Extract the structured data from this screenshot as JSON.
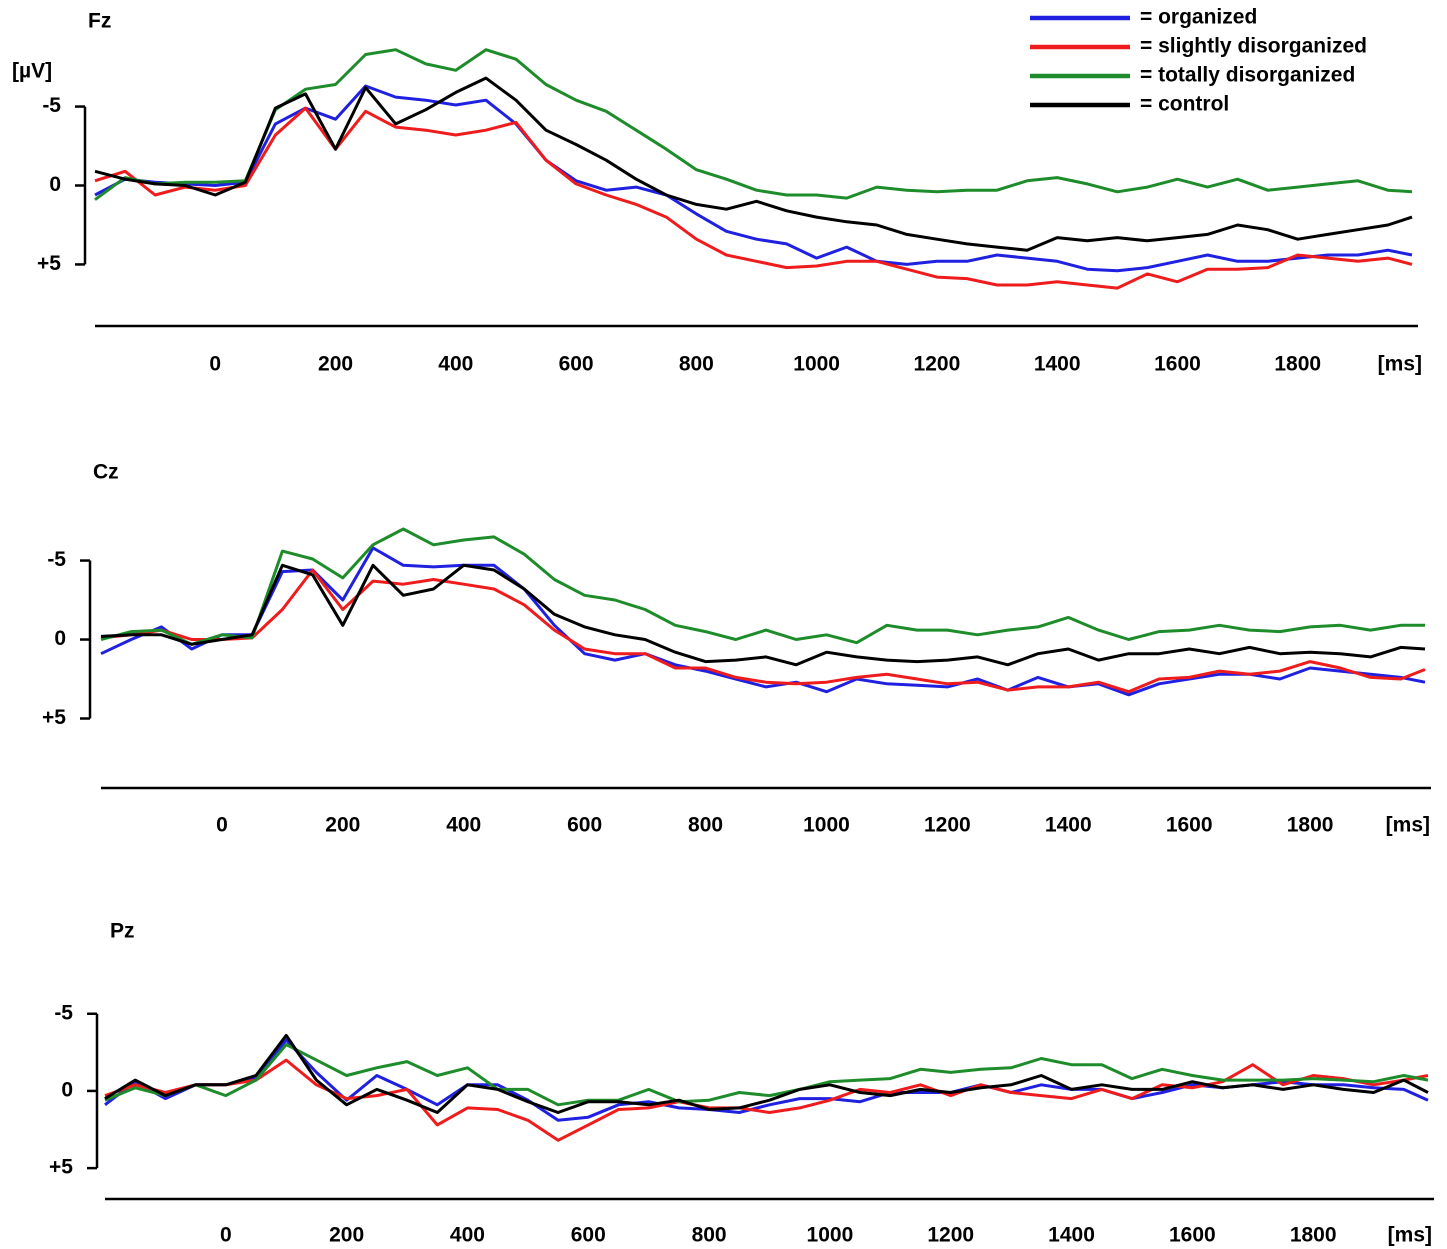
{
  "chart_data": [
    {
      "type": "line",
      "title": "Fz",
      "ylabel": "[µV]",
      "xlabel": "[ms]",
      "legend": "upper right",
      "x": [
        -200,
        -150,
        -100,
        -50,
        0,
        50,
        100,
        150,
        200,
        250,
        300,
        350,
        400,
        450,
        500,
        550,
        600,
        650,
        700,
        750,
        800,
        850,
        900,
        950,
        1000,
        1050,
        1100,
        1150,
        1200,
        1250,
        1300,
        1350,
        1400,
        1450,
        1500,
        1550,
        1600,
        1650,
        1700,
        1750,
        1800,
        1850,
        1900,
        1950,
        1990
      ],
      "xlim": [
        -200,
        2000
      ],
      "xticks": [
        0,
        200,
        400,
        600,
        800,
        1000,
        1200,
        1400,
        1600,
        1800
      ],
      "ylim": [
        -10.8,
        8.9
      ],
      "y_reversed": true,
      "yticks": [
        -5,
        0,
        {
          "value": 5,
          "label": "+5"
        }
      ],
      "series": [
        {
          "name": "= organized",
          "color": "#2020e0",
          "values": [
            0.6,
            -0.4,
            -0.2,
            -0.1,
            0,
            -0.2,
            -3.9,
            -4.9,
            -4.2,
            -6.3,
            -5.6,
            -5.4,
            -5.1,
            -5.4,
            -3.9,
            -1.6,
            -0.3,
            0.3,
            0.1,
            0.6,
            1.8,
            2.9,
            3.4,
            3.7,
            4.6,
            3.9,
            4.8,
            5.0,
            4.8,
            4.8,
            4.4,
            4.6,
            4.8,
            5.3,
            5.4,
            5.2,
            4.8,
            4.4,
            4.8,
            4.8,
            4.6,
            4.4,
            4.4,
            4.1,
            4.4
          ]
        },
        {
          "name": "= slightly disorganized",
          "color": "#ee1c1c",
          "values": [
            -0.3,
            -0.9,
            0.6,
            0.1,
            0.3,
            0,
            -3.2,
            -4.9,
            -2.3,
            -4.7,
            -3.7,
            -3.5,
            -3.2,
            -3.5,
            -4.0,
            -1.6,
            -0.1,
            0.6,
            1.2,
            2.0,
            3.4,
            4.4,
            4.8,
            5.2,
            5.1,
            4.8,
            4.8,
            5.3,
            5.8,
            5.9,
            6.3,
            6.3,
            6.1,
            6.3,
            6.5,
            5.6,
            6.1,
            5.3,
            5.3,
            5.2,
            4.4,
            4.6,
            4.8,
            4.6,
            5.0
          ]
        },
        {
          "name": "= totally disorganized",
          "color": "#1e8c2a",
          "values": [
            0.9,
            -0.5,
            -0.1,
            -0.2,
            -0.2,
            -0.3,
            -4.8,
            -6.1,
            -6.4,
            -8.3,
            -8.6,
            -7.7,
            -7.3,
            -8.6,
            -8.0,
            -6.4,
            -5.4,
            -4.7,
            -3.5,
            -2.3,
            -1.0,
            -0.4,
            0.3,
            0.6,
            0.6,
            0.8,
            0.1,
            0.3,
            0.4,
            0.3,
            0.3,
            -0.3,
            -0.5,
            -0.1,
            0.4,
            0.1,
            -0.4,
            0.1,
            -0.4,
            0.3,
            0.1,
            -0.1,
            -0.3,
            0.3,
            0.4
          ]
        },
        {
          "name": "= control",
          "color": "#000000",
          "values": [
            -0.9,
            -0.4,
            -0.1,
            0,
            0.6,
            -0.2,
            -4.9,
            -5.8,
            -2.3,
            -6.2,
            -3.9,
            -4.8,
            -5.9,
            -6.8,
            -5.4,
            -3.5,
            -2.6,
            -1.6,
            -0.4,
            0.6,
            1.2,
            1.5,
            1.0,
            1.6,
            2.0,
            2.3,
            2.5,
            3.1,
            3.4,
            3.7,
            3.9,
            4.1,
            3.3,
            3.5,
            3.3,
            3.5,
            3.3,
            3.1,
            2.5,
            2.8,
            3.4,
            3.1,
            2.8,
            2.5,
            2.0
          ]
        }
      ]
    },
    {
      "type": "line",
      "title": "Cz",
      "xlabel": "[ms]",
      "x": [
        -200,
        -150,
        -100,
        -50,
        0,
        50,
        100,
        150,
        200,
        250,
        300,
        350,
        400,
        450,
        500,
        550,
        600,
        650,
        700,
        750,
        800,
        850,
        900,
        950,
        1000,
        1050,
        1100,
        1150,
        1200,
        1250,
        1300,
        1350,
        1400,
        1450,
        1500,
        1550,
        1600,
        1650,
        1700,
        1750,
        1800,
        1850,
        1900,
        1950,
        1990
      ],
      "xlim": [
        -200,
        2000
      ],
      "xticks": [
        0,
        200,
        400,
        600,
        800,
        1000,
        1200,
        1400,
        1600,
        1800
      ],
      "ylim": [
        -10.1,
        9.4
      ],
      "y_reversed": true,
      "yticks": [
        -5,
        0,
        {
          "value": 5,
          "label": "+5"
        }
      ],
      "series": [
        {
          "color": "#2020e0",
          "values": [
            0.9,
            0,
            -0.8,
            0.6,
            -0.3,
            -0.3,
            -4.3,
            -4.4,
            -2.5,
            -5.8,
            -4.7,
            -4.6,
            -4.7,
            -4.7,
            -3.2,
            -0.9,
            0.9,
            1.3,
            0.9,
            1.6,
            2.0,
            2.5,
            3.0,
            2.7,
            3.3,
            2.5,
            2.8,
            2.9,
            3.0,
            2.5,
            3.2,
            2.4,
            3.0,
            2.8,
            3.5,
            2.8,
            2.5,
            2.2,
            2.2,
            2.5,
            1.8,
            2.0,
            2.2,
            2.4,
            2.7
          ]
        },
        {
          "color": "#ee1c1c",
          "values": [
            -0.1,
            -0.3,
            -0.6,
            0,
            0,
            -0.1,
            -1.9,
            -4.4,
            -1.9,
            -3.7,
            -3.5,
            -3.8,
            -3.5,
            -3.2,
            -2.2,
            -0.6,
            0.6,
            0.9,
            0.9,
            1.8,
            1.8,
            2.4,
            2.7,
            2.8,
            2.7,
            2.4,
            2.2,
            2.5,
            2.8,
            2.7,
            3.2,
            3.0,
            3.0,
            2.7,
            3.3,
            2.5,
            2.4,
            2.0,
            2.2,
            2.0,
            1.4,
            1.8,
            2.4,
            2.5,
            1.9
          ]
        },
        {
          "color": "#1e8c2a",
          "values": [
            0,
            -0.5,
            -0.6,
            0.3,
            -0.3,
            -0.1,
            -5.6,
            -5.1,
            -3.9,
            -6.0,
            -7.0,
            -6.0,
            -6.3,
            -6.5,
            -5.4,
            -3.8,
            -2.8,
            -2.5,
            -1.9,
            -0.9,
            -0.5,
            0,
            -0.6,
            0,
            -0.3,
            0.2,
            -0.9,
            -0.6,
            -0.6,
            -0.3,
            -0.6,
            -0.8,
            -1.4,
            -0.6,
            0,
            -0.5,
            -0.6,
            -0.9,
            -0.6,
            -0.5,
            -0.8,
            -0.9,
            -0.6,
            -0.9,
            -0.9
          ]
        },
        {
          "color": "#000000",
          "values": [
            -0.2,
            -0.3,
            -0.3,
            0.3,
            0,
            -0.3,
            -4.7,
            -4.1,
            -0.9,
            -4.7,
            -2.8,
            -3.2,
            -4.7,
            -4.4,
            -3.2,
            -1.6,
            -0.8,
            -0.3,
            0,
            0.8,
            1.4,
            1.3,
            1.1,
            1.6,
            0.8,
            1.1,
            1.3,
            1.4,
            1.3,
            1.1,
            1.6,
            0.9,
            0.6,
            1.3,
            0.9,
            0.9,
            0.6,
            0.9,
            0.5,
            0.9,
            0.8,
            0.9,
            1.1,
            0.5,
            0.6
          ]
        }
      ]
    },
    {
      "type": "line",
      "title": "Pz",
      "xlabel": "[ms]",
      "x": [
        -200,
        -150,
        -100,
        -50,
        0,
        50,
        100,
        150,
        200,
        250,
        300,
        350,
        400,
        450,
        500,
        550,
        600,
        650,
        700,
        750,
        800,
        850,
        900,
        950,
        1000,
        1050,
        1100,
        1150,
        1200,
        1250,
        1300,
        1350,
        1400,
        1450,
        1500,
        1550,
        1600,
        1650,
        1700,
        1750,
        1800,
        1850,
        1900,
        1950,
        1990
      ],
      "xlim": [
        -200,
        2000
      ],
      "xticks": [
        0,
        200,
        400,
        600,
        800,
        1000,
        1200,
        1400,
        1600,
        1800
      ],
      "ylim": [
        -10.1,
        7.0
      ],
      "y_reversed": true,
      "yticks": [
        -5,
        0,
        {
          "value": 5,
          "label": "+5"
        }
      ],
      "series": [
        {
          "color": "#2020e0",
          "values": [
            0.9,
            -0.6,
            0.5,
            -0.4,
            -0.4,
            -0.8,
            -3.3,
            -1.2,
            0.6,
            -1.0,
            -0.1,
            0.9,
            -0.4,
            -0.4,
            0.6,
            1.9,
            1.7,
            0.9,
            0.7,
            1.1,
            1.2,
            1.4,
            0.9,
            0.5,
            0.5,
            0.7,
            0.1,
            0.1,
            0.1,
            -0.4,
            0.1,
            -0.4,
            -0.1,
            -0.1,
            0.5,
            0.1,
            -0.4,
            -0.2,
            -0.4,
            -0.6,
            -0.4,
            -0.4,
            -0.2,
            -0.1,
            0.6
          ]
        },
        {
          "color": "#ee1c1c",
          "values": [
            0.3,
            -0.4,
            0.1,
            -0.4,
            -0.4,
            -0.7,
            -2.0,
            -0.4,
            0.5,
            0.3,
            -0.1,
            2.2,
            1.1,
            1.2,
            1.9,
            3.2,
            2.2,
            1.2,
            1.1,
            0.7,
            1.1,
            1.1,
            1.4,
            1.1,
            0.6,
            -0.1,
            0.1,
            -0.4,
            0.3,
            -0.4,
            0.1,
            0.3,
            0.5,
            -0.1,
            0.5,
            -0.4,
            -0.2,
            -0.6,
            -1.7,
            -0.4,
            -1.0,
            -0.8,
            -0.4,
            -0.7,
            -1.0
          ]
        },
        {
          "color": "#1e8c2a",
          "values": [
            0.6,
            -0.2,
            0.3,
            -0.4,
            0.3,
            -0.7,
            -3.0,
            -2.0,
            -1.0,
            -1.5,
            -1.9,
            -1.0,
            -1.5,
            -0.1,
            -0.1,
            0.9,
            0.6,
            0.6,
            -0.1,
            0.7,
            0.6,
            0.1,
            0.3,
            -0.1,
            -0.6,
            -0.7,
            -0.8,
            -1.4,
            -1.2,
            -1.4,
            -1.5,
            -2.1,
            -1.7,
            -1.7,
            -0.8,
            -1.4,
            -1.0,
            -0.7,
            -0.7,
            -0.7,
            -0.8,
            -0.7,
            -0.6,
            -1.0,
            -0.7
          ]
        },
        {
          "color": "#000000",
          "values": [
            0.5,
            -0.7,
            0.3,
            -0.4,
            -0.4,
            -1.0,
            -3.6,
            -0.7,
            0.9,
            -0.1,
            0.6,
            1.4,
            -0.4,
            -0.1,
            0.7,
            1.4,
            0.7,
            0.7,
            0.9,
            0.6,
            1.2,
            1.1,
            0.6,
            -0.1,
            -0.4,
            0.1,
            0.3,
            -0.1,
            0.1,
            -0.2,
            -0.4,
            -1.0,
            -0.1,
            -0.4,
            -0.1,
            -0.1,
            -0.6,
            -0.2,
            -0.4,
            -0.1,
            -0.4,
            -0.1,
            0.1,
            -0.7,
            0.1
          ]
        }
      ]
    }
  ]
}
